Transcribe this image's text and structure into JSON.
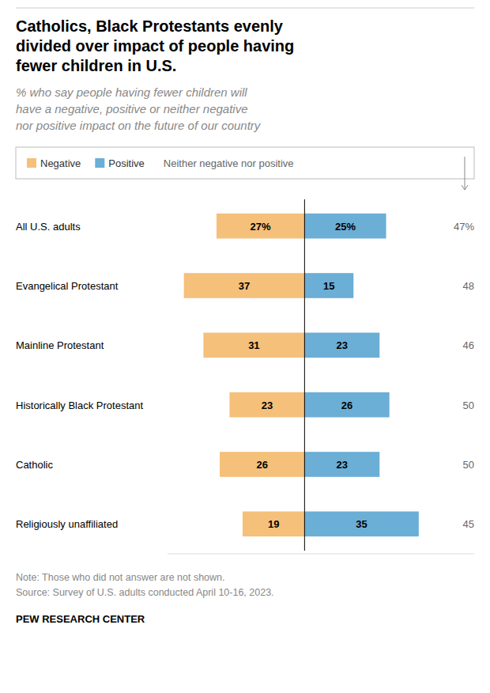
{
  "chart_data": {
    "type": "bar",
    "orientation": "horizontal",
    "title": "Catholics, Black Protestants evenly\ndivided over impact of people having\nfewer children in U.S.",
    "subtitle": "% who say people having fewer children will\nhave a negative, positive or neither negative\nnor positive impact on the future of our country",
    "categories": [
      "All U.S. adults",
      "Evangelical Protestant",
      "Mainline Protestant",
      "Historically Black Protestant",
      "Catholic",
      "Religiously unaffiliated"
    ],
    "series": [
      {
        "name": "Negative",
        "color": "#F5C07A",
        "values": [
          27,
          37,
          31,
          23,
          26,
          19
        ],
        "value_labels": [
          "27%",
          "37",
          "31",
          "23",
          "26",
          "19"
        ]
      },
      {
        "name": "Positive",
        "color": "#6BAED6",
        "values": [
          25,
          15,
          23,
          26,
          23,
          35
        ],
        "value_labels": [
          "25%",
          "15",
          "23",
          "26",
          "23",
          "35"
        ]
      },
      {
        "name": "Neither negative nor positive",
        "type": "text",
        "color": "#666666",
        "values": [
          47,
          48,
          46,
          50,
          50,
          45
        ],
        "value_labels": [
          "47%",
          "48",
          "46",
          "50",
          "50",
          "45"
        ]
      }
    ],
    "xlim": [
      -42,
      52
    ],
    "tick_labels": false,
    "data_labels": true,
    "grid": false,
    "legend": "top",
    "note": "Note: Those who did not answer are not shown.\nSource: Survey of U.S. adults conducted April 10-16, 2023.",
    "footer": "PEW RESEARCH CENTER"
  }
}
